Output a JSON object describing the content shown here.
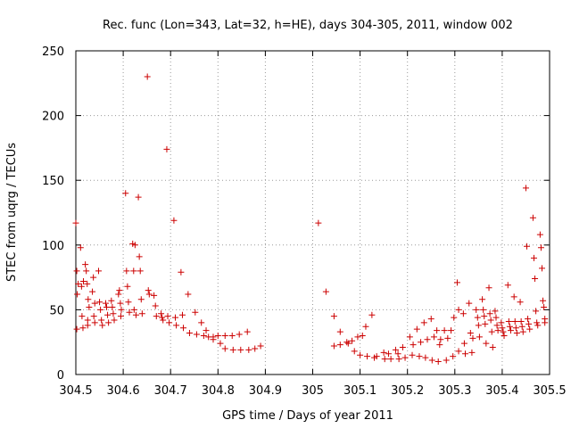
{
  "chart_data": {
    "type": "scatter",
    "title": "Rec. func (Lon=343, Lat=32, h=HE), days 304-305, 2011, window 002",
    "xlabel": "GPS time / Days of year 2011",
    "ylabel": "STEC from uqrg / TECUs",
    "xlim": [
      304.5,
      305.5
    ],
    "ylim": [
      0,
      250
    ],
    "xticks": [
      304.5,
      304.6,
      304.7,
      304.8,
      304.9,
      305,
      305.1,
      305.2,
      305.3,
      305.4,
      305.5
    ],
    "xtick_labels": [
      "304.5",
      "304.6",
      "304.7",
      "304.8",
      "304.9",
      "305",
      "305.1",
      "305.2",
      "305.3",
      "305.4",
      "305.5"
    ],
    "yticks": [
      0,
      50,
      100,
      150,
      200,
      250
    ],
    "ytick_labels": [
      "0",
      "50",
      "100",
      "150",
      "200",
      "250"
    ],
    "grid": true,
    "marker": "+",
    "color": "#cc0000",
    "series": [
      {
        "name": "STEC",
        "points": [
          [
            304.5,
            117
          ],
          [
            304.502,
            80
          ],
          [
            304.503,
            62
          ],
          [
            304.505,
            70
          ],
          [
            304.502,
            35
          ],
          [
            304.51,
            98
          ],
          [
            304.512,
            68
          ],
          [
            304.515,
            36
          ],
          [
            304.513,
            45
          ],
          [
            304.516,
            72
          ],
          [
            304.52,
            85
          ],
          [
            304.522,
            80
          ],
          [
            304.524,
            70
          ],
          [
            304.526,
            58
          ],
          [
            304.528,
            52
          ],
          [
            304.525,
            42
          ],
          [
            304.525,
            38
          ],
          [
            304.535,
            64
          ],
          [
            304.537,
            75
          ],
          [
            304.54,
            55
          ],
          [
            304.538,
            45
          ],
          [
            304.54,
            40
          ],
          [
            304.548,
            80
          ],
          [
            304.55,
            56
          ],
          [
            304.552,
            50
          ],
          [
            304.554,
            42
          ],
          [
            304.556,
            38
          ],
          [
            304.563,
            55
          ],
          [
            304.565,
            52
          ],
          [
            304.567,
            46
          ],
          [
            304.569,
            40
          ],
          [
            304.575,
            57
          ],
          [
            304.577,
            52
          ],
          [
            304.579,
            47
          ],
          [
            304.581,
            42
          ],
          [
            304.59,
            62
          ],
          [
            304.592,
            65
          ],
          [
            304.594,
            55
          ],
          [
            304.596,
            50
          ],
          [
            304.595,
            45
          ],
          [
            304.605,
            140
          ],
          [
            304.607,
            80
          ],
          [
            304.609,
            68
          ],
          [
            304.611,
            56
          ],
          [
            304.613,
            48
          ],
          [
            304.62,
            101
          ],
          [
            304.622,
            80
          ],
          [
            304.625,
            100
          ],
          [
            304.623,
            50
          ],
          [
            304.627,
            46
          ],
          [
            304.632,
            137
          ],
          [
            304.634,
            91
          ],
          [
            304.636,
            80
          ],
          [
            304.638,
            58
          ],
          [
            304.64,
            47
          ],
          [
            304.651,
            230
          ],
          [
            304.653,
            65
          ],
          [
            304.655,
            62
          ],
          [
            304.665,
            61
          ],
          [
            304.668,
            53
          ],
          [
            304.67,
            45
          ],
          [
            304.68,
            47
          ],
          [
            304.682,
            44
          ],
          [
            304.684,
            42
          ],
          [
            304.692,
            174
          ],
          [
            304.694,
            45
          ],
          [
            304.697,
            40
          ],
          [
            304.707,
            119
          ],
          [
            304.71,
            44
          ],
          [
            304.712,
            38
          ],
          [
            304.722,
            79
          ],
          [
            304.725,
            46
          ],
          [
            304.727,
            36
          ],
          [
            304.737,
            62
          ],
          [
            304.74,
            32
          ],
          [
            304.752,
            48
          ],
          [
            304.755,
            31
          ],
          [
            304.765,
            40
          ],
          [
            304.77,
            30
          ],
          [
            304.775,
            34
          ],
          [
            304.78,
            29
          ],
          [
            304.79,
            29
          ],
          [
            304.79,
            27
          ],
          [
            304.8,
            30
          ],
          [
            304.805,
            24
          ],
          [
            304.815,
            30
          ],
          [
            304.815,
            20
          ],
          [
            304.83,
            30
          ],
          [
            304.832,
            19
          ],
          [
            304.845,
            31
          ],
          [
            304.848,
            19
          ],
          [
            304.862,
            33
          ],
          [
            304.865,
            19
          ],
          [
            304.878,
            20
          ],
          [
            304.89,
            22
          ],
          [
            305.012,
            117
          ],
          [
            305.028,
            64
          ],
          [
            305.045,
            45
          ],
          [
            305.045,
            22
          ],
          [
            305.058,
            33
          ],
          [
            305.058,
            23
          ],
          [
            305.072,
            25
          ],
          [
            305.075,
            24
          ],
          [
            305.083,
            26
          ],
          [
            305.088,
            18
          ],
          [
            305.095,
            29
          ],
          [
            305.1,
            15
          ],
          [
            305.105,
            30
          ],
          [
            305.112,
            37
          ],
          [
            305.115,
            14
          ],
          [
            305.125,
            46
          ],
          [
            305.13,
            13
          ],
          [
            305.135,
            14
          ],
          [
            305.15,
            17
          ],
          [
            305.152,
            12
          ],
          [
            305.16,
            16
          ],
          [
            305.165,
            12
          ],
          [
            305.175,
            19
          ],
          [
            305.18,
            16
          ],
          [
            305.182,
            12
          ],
          [
            305.19,
            21
          ],
          [
            305.195,
            13
          ],
          [
            305.205,
            29
          ],
          [
            305.21,
            15
          ],
          [
            305.212,
            23
          ],
          [
            305.22,
            35
          ],
          [
            305.225,
            14
          ],
          [
            305.228,
            25
          ],
          [
            305.235,
            40
          ],
          [
            305.238,
            13
          ],
          [
            305.242,
            27
          ],
          [
            305.25,
            43
          ],
          [
            305.252,
            11
          ],
          [
            305.256,
            29
          ],
          [
            305.262,
            34
          ],
          [
            305.265,
            10
          ],
          [
            305.268,
            23
          ],
          [
            305.27,
            27
          ],
          [
            305.278,
            34
          ],
          [
            305.282,
            11
          ],
          [
            305.285,
            28
          ],
          [
            305.292,
            34
          ],
          [
            305.296,
            14
          ],
          [
            305.298,
            44
          ],
          [
            305.305,
            71
          ],
          [
            305.308,
            50
          ],
          [
            305.308,
            18
          ],
          [
            305.318,
            47
          ],
          [
            305.32,
            24
          ],
          [
            305.322,
            16
          ],
          [
            305.33,
            55
          ],
          [
            305.333,
            32
          ],
          [
            305.336,
            17
          ],
          [
            305.338,
            28
          ],
          [
            305.345,
            50
          ],
          [
            305.348,
            44
          ],
          [
            305.35,
            38
          ],
          [
            305.352,
            29
          ],
          [
            305.358,
            58
          ],
          [
            305.36,
            50
          ],
          [
            305.362,
            45
          ],
          [
            305.364,
            39
          ],
          [
            305.366,
            24
          ],
          [
            305.372,
            67
          ],
          [
            305.374,
            47
          ],
          [
            305.376,
            42
          ],
          [
            305.378,
            33
          ],
          [
            305.38,
            21
          ],
          [
            305.385,
            49
          ],
          [
            305.387,
            44
          ],
          [
            305.389,
            38
          ],
          [
            305.391,
            34
          ],
          [
            305.398,
            40
          ],
          [
            305.4,
            36
          ],
          [
            305.402,
            33
          ],
          [
            305.404,
            30
          ],
          [
            305.412,
            69
          ],
          [
            305.414,
            41
          ],
          [
            305.416,
            37
          ],
          [
            305.418,
            34
          ],
          [
            305.425,
            60
          ],
          [
            305.427,
            41
          ],
          [
            305.429,
            36
          ],
          [
            305.431,
            32
          ],
          [
            305.438,
            56
          ],
          [
            305.44,
            41
          ],
          [
            305.442,
            37
          ],
          [
            305.444,
            33
          ],
          [
            305.45,
            144
          ],
          [
            305.452,
            99
          ],
          [
            305.454,
            43
          ],
          [
            305.456,
            39
          ],
          [
            305.458,
            35
          ],
          [
            305.465,
            121
          ],
          [
            305.467,
            90
          ],
          [
            305.469,
            74
          ],
          [
            305.471,
            49
          ],
          [
            305.473,
            40
          ],
          [
            305.475,
            38
          ],
          [
            305.48,
            108
          ],
          [
            305.482,
            98
          ],
          [
            305.484,
            82
          ],
          [
            305.486,
            57
          ],
          [
            305.488,
            52
          ],
          [
            305.49,
            43
          ],
          [
            305.49,
            40
          ]
        ]
      }
    ]
  }
}
